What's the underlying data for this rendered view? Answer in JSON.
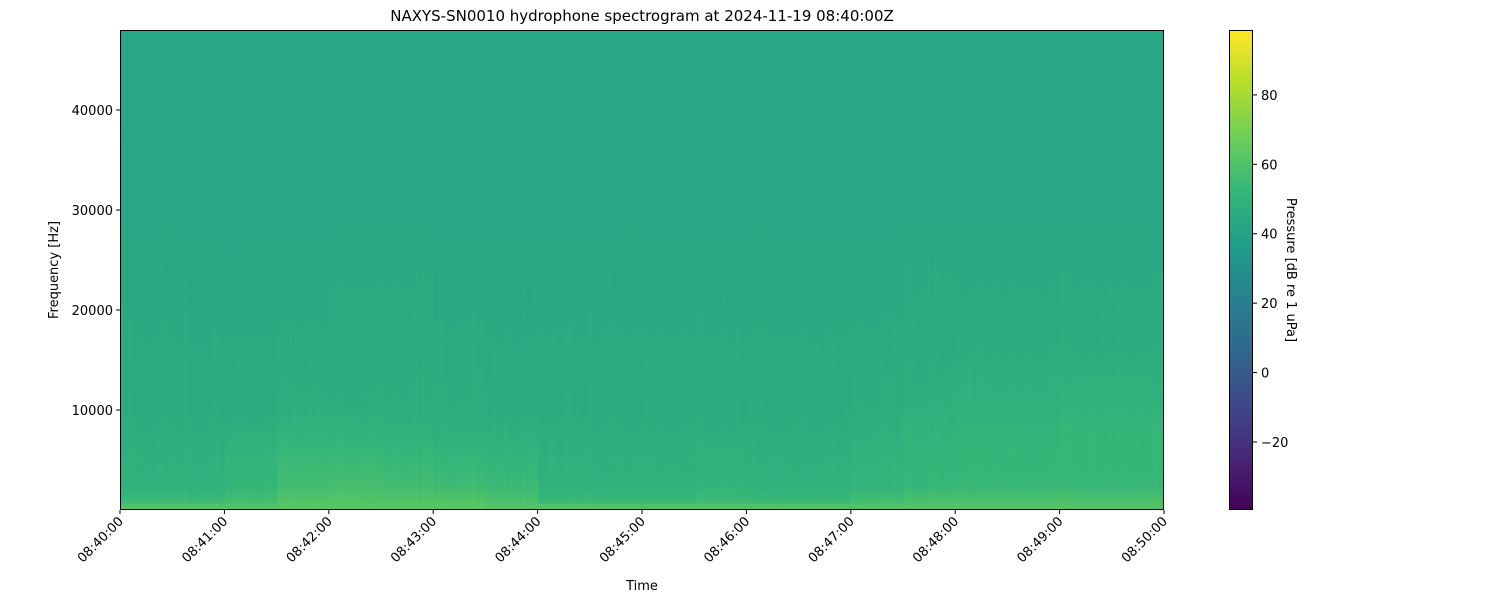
{
  "chart_data": {
    "type": "heatmap",
    "title": "NAXYS-SN0010 hydrophone spectrogram at 2024-11-19 08:40:00Z",
    "xlabel": "Time",
    "ylabel": "Frequency [Hz]",
    "colorbar_label": "Pressure [dB re 1 uPa]",
    "colormap": "viridis",
    "clim": [
      -39.6,
      98.7
    ],
    "xlim": [
      "08:40:00",
      "08:50:00"
    ],
    "ylim": [
      0,
      48000
    ],
    "x_ticks": [
      "08:40:00",
      "08:41:00",
      "08:42:00",
      "08:43:00",
      "08:44:00",
      "08:45:00",
      "08:46:00",
      "08:47:00",
      "08:48:00",
      "08:49:00",
      "08:50:00"
    ],
    "y_ticks": [
      10000,
      20000,
      30000,
      40000
    ],
    "colorbar_ticks": [
      -20,
      0,
      20,
      40,
      60,
      80
    ],
    "time_bin_starts": [
      "08:40:00",
      "08:40:30",
      "08:41:00",
      "08:41:30",
      "08:42:00",
      "08:42:30",
      "08:43:00",
      "08:43:30",
      "08:44:00",
      "08:44:30",
      "08:45:00",
      "08:45:30",
      "08:46:00",
      "08:46:30",
      "08:47:00",
      "08:47:30",
      "08:48:00",
      "08:48:30",
      "08:49:00",
      "08:49:30"
    ],
    "frequency_bands_hz": [
      500,
      2500,
      5000,
      7500,
      10000,
      15000,
      20000,
      30000,
      40000,
      47000
    ],
    "levels_db": [
      [
        56,
        56,
        58,
        62,
        62,
        62,
        62,
        60,
        55,
        55,
        55,
        56,
        55,
        55,
        58,
        60,
        60,
        60,
        60,
        60
      ],
      [
        49,
        49,
        52,
        56,
        57,
        56,
        55,
        54,
        49,
        49,
        49,
        50,
        49,
        49,
        51,
        52,
        53,
        53,
        53,
        53
      ],
      [
        48,
        48,
        51,
        54,
        54,
        53,
        52,
        51,
        48,
        48,
        48,
        49,
        48,
        48,
        50,
        51,
        52,
        52,
        52,
        52
      ],
      [
        47,
        47,
        48,
        50,
        50,
        49,
        48,
        48,
        47,
        47,
        47,
        47,
        47,
        47,
        48,
        50,
        51,
        51,
        52,
        52
      ],
      [
        46,
        46,
        46,
        47,
        47,
        47,
        47,
        46,
        46,
        46,
        46,
        46,
        46,
        46,
        47,
        48,
        49,
        49,
        50,
        50
      ],
      [
        45,
        45,
        45,
        46,
        46,
        46,
        46,
        45,
        45,
        45,
        45,
        45,
        45,
        45,
        46,
        46,
        47,
        47,
        47,
        47
      ],
      [
        44,
        44,
        44,
        44,
        45,
        45,
        44,
        44,
        44,
        44,
        44,
        44,
        44,
        44,
        44,
        45,
        45,
        45,
        45,
        45
      ],
      [
        43,
        43,
        43,
        43,
        43,
        43,
        43,
        43,
        43,
        43,
        43,
        43,
        43,
        43,
        43,
        43,
        43,
        43,
        43,
        43
      ],
      [
        43,
        43,
        43,
        43,
        43,
        43,
        43,
        43,
        43,
        43,
        43,
        43,
        43,
        43,
        43,
        43,
        43,
        43,
        43,
        43
      ],
      [
        43,
        43,
        43,
        43,
        43,
        43,
        43,
        43,
        43,
        43,
        43,
        43,
        43,
        43,
        43,
        43,
        43,
        43,
        43,
        43
      ]
    ]
  }
}
